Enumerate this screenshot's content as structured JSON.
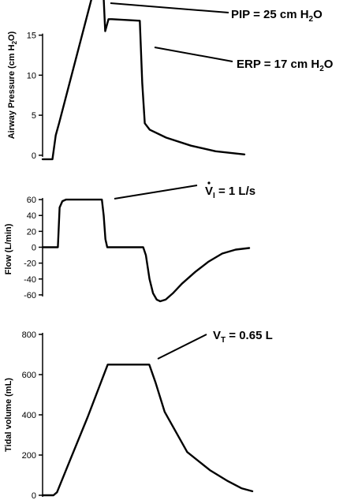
{
  "chart_data": [
    {
      "type": "line",
      "ylabel": "Airway Pressure (cm H2O)",
      "ylabel_main": "Airway Pressure (cm H",
      "ylabel_sub": "2",
      "ylabel_end": "O)",
      "ylim": [
        -1,
        19
      ],
      "yticks": [
        0,
        5,
        10,
        15
      ],
      "grid": false,
      "series": [
        {
          "x": [
            0,
            12,
            16,
            20,
            72,
            76,
            80,
            84,
            118,
            121,
            124,
            130,
            150,
            180,
            210,
            245
          ],
          "values": [
            -0.5,
            -0.5,
            2.5,
            4,
            24.5,
            15.5,
            17,
            17,
            16.8,
            9,
            4,
            3.2,
            2.2,
            1.2,
            0.5,
            0.1
          ]
        }
      ],
      "annotations": [
        {
          "text_main": "PIP = 25 cm H",
          "text_sub": "2",
          "text_end": "O"
        },
        {
          "text_main": "ERP = 17 cm H",
          "text_sub": "2",
          "text_end": "O"
        }
      ]
    },
    {
      "type": "line",
      "ylabel": "Flow (L/min)",
      "ylim": [
        -75,
        70
      ],
      "yticks": [
        60,
        40,
        20,
        0,
        -20,
        -40,
        -60
      ],
      "grid": false,
      "series": [
        {
          "x": [
            0,
            17,
            19,
            22,
            26,
            30,
            64,
            66,
            68,
            70,
            72,
            80,
            90,
            112,
            115,
            119,
            123,
            127,
            131,
            137,
            145,
            155,
            170,
            185,
            200,
            215,
            230
          ],
          "values": [
            0,
            0,
            50,
            58,
            60,
            60,
            60,
            60,
            40,
            10,
            0,
            0,
            0,
            0,
            -10,
            -40,
            -58,
            -66,
            -68,
            -66,
            -58,
            -46,
            -31,
            -18,
            -8,
            -3,
            -1
          ]
        }
      ],
      "annotations": [
        {
          "text_main": "V",
          "text_dot": "̇",
          "text_sub": "I",
          "text_end": " = 1 L/s"
        }
      ]
    },
    {
      "type": "line",
      "ylabel": "Tidal volume (mL)",
      "ylim": [
        0,
        800
      ],
      "yticks": [
        0,
        200,
        400,
        600,
        800
      ],
      "grid": false,
      "series": [
        {
          "x": [
            0,
            12,
            16,
            30,
            50,
            72,
            100,
            118,
            125,
            135,
            160,
            185,
            205,
            220,
            232
          ],
          "values": [
            0,
            0,
            15,
            170,
            390,
            650,
            650,
            650,
            560,
            415,
            215,
            125,
            70,
            35,
            20
          ]
        }
      ],
      "annotations": [
        {
          "text_main": "V",
          "text_sub": "T",
          "text_end": " = 0.65 L"
        }
      ]
    }
  ]
}
